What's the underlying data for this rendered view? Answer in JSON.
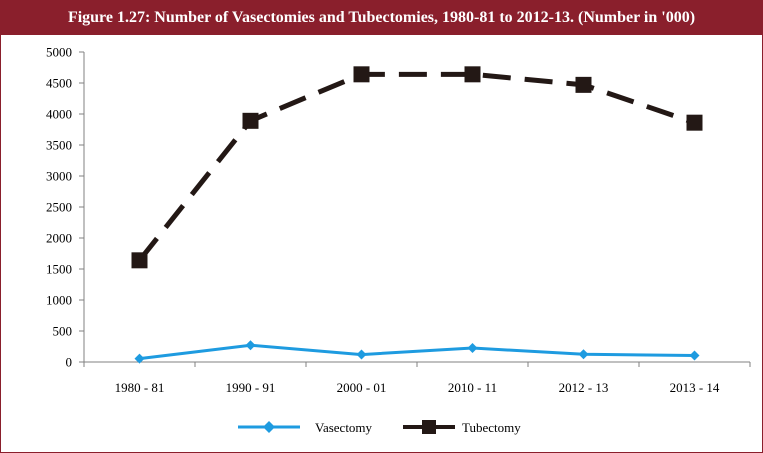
{
  "chart_data": {
    "type": "line",
    "title": "Figure 1.27:  Number of Vasectomies and Tubectomies, 1980-81 to 2012-13. (Number in '000)",
    "categories": [
      "1980  - 81",
      "1990  - 91",
      "2000  - 01",
      "2010  - 11",
      "2012  - 13",
      "2013  - 14"
    ],
    "series": [
      {
        "name": "Vasectomy",
        "values": [
          55,
          270,
          120,
          225,
          125,
          105
        ],
        "color": "#1e9be0"
      },
      {
        "name": "Tubectomy",
        "values": [
          1640,
          3890,
          4640,
          4640,
          4470,
          3860
        ],
        "color": "#231815"
      }
    ],
    "ylim": [
      0,
      5000
    ],
    "yticks": [
      0,
      500,
      1000,
      1500,
      2000,
      2500,
      3000,
      3500,
      4000,
      4500,
      5000
    ],
    "grid": false,
    "legend": "bottom",
    "colors": {
      "title_bar": "#8a1f2c",
      "title_text": "#ffffff",
      "axis": "#808080"
    }
  }
}
